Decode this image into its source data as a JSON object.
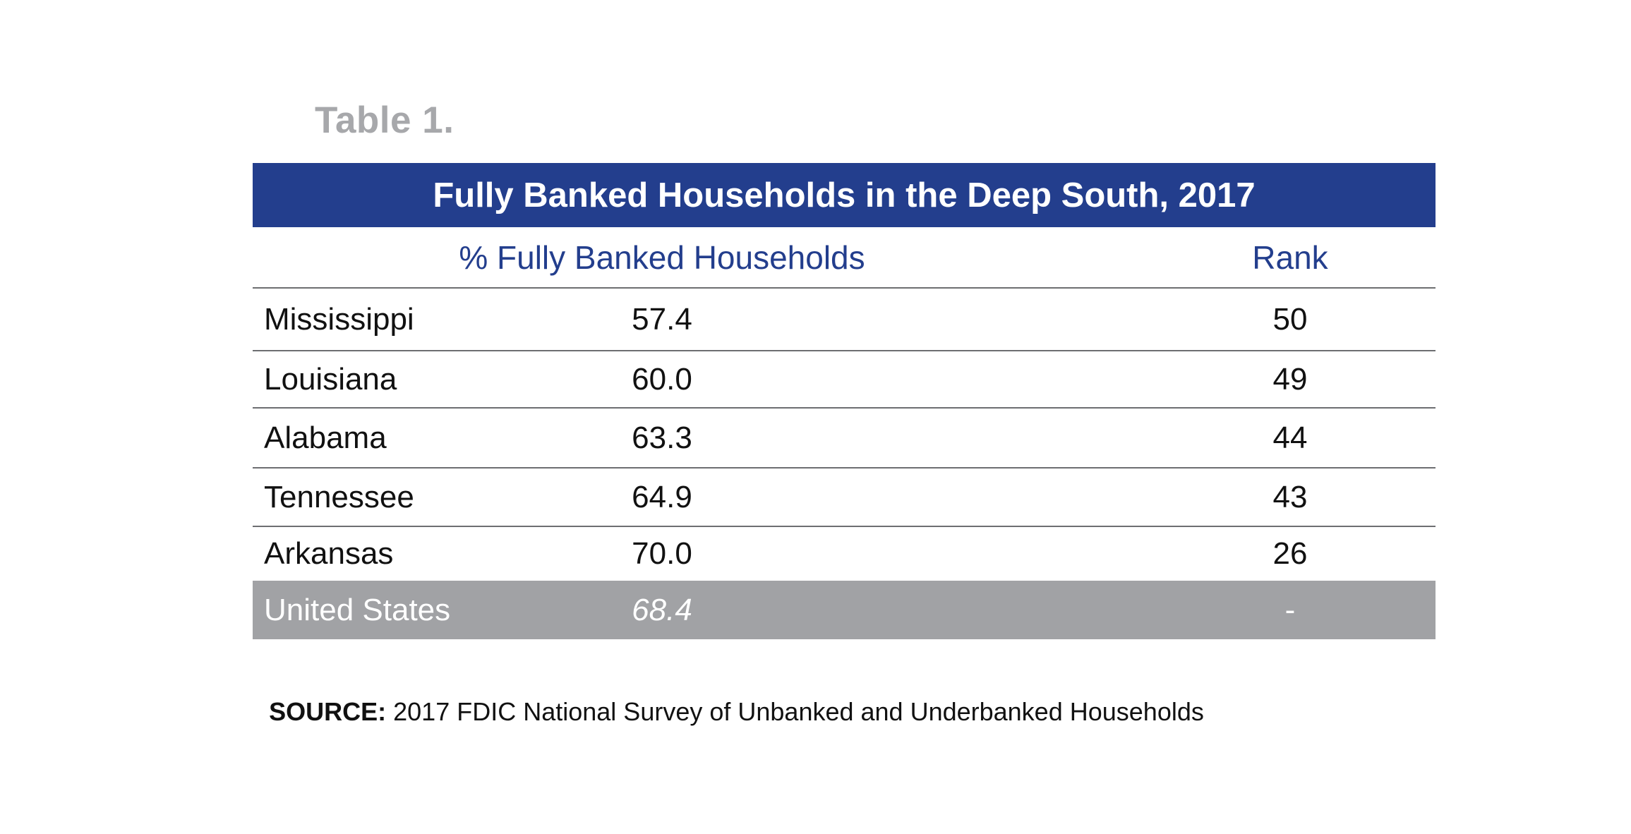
{
  "table_label": "Table 1.",
  "table_title": "Fully Banked Households in the Deep South, 2017",
  "columns": {
    "state": "",
    "pct": "% Fully Banked Households",
    "rank": "Rank"
  },
  "chart_data": {
    "type": "table",
    "title": "Fully Banked Households in the Deep South, 2017",
    "columns": [
      "",
      "% Fully Banked Households",
      "Rank"
    ],
    "rows": [
      {
        "state": "Mississippi",
        "pct": "57.4",
        "rank": "50"
      },
      {
        "state": "Louisiana",
        "pct": "60.0",
        "rank": "49"
      },
      {
        "state": "Alabama",
        "pct": "63.3",
        "rank": "44"
      },
      {
        "state": "Tennessee",
        "pct": "64.9",
        "rank": "43"
      },
      {
        "state": "Arkansas",
        "pct": "70.0",
        "rank": "26"
      },
      {
        "state": "United States",
        "pct": "68.4",
        "rank": "-"
      }
    ]
  },
  "colors": {
    "title_bar": "#233e8d",
    "header_text": "#233e8d",
    "us_row": "#a1a2a5",
    "label_gray": "#a7a8ab"
  },
  "source": {
    "key": "SOURCE:",
    "text": " 2017 FDIC National Survey of Unbanked and Underbanked Households"
  }
}
